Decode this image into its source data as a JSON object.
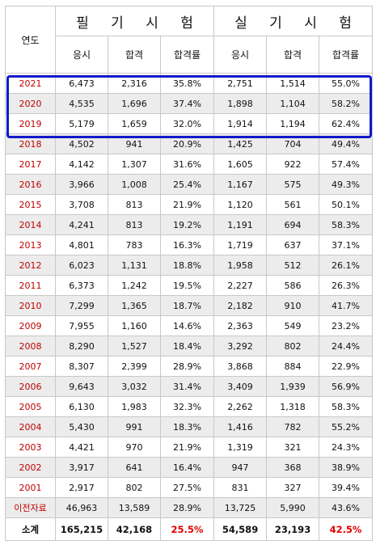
{
  "header": {
    "year_label": "연도",
    "written_label": "필 기 시 험",
    "practical_label": "실 기 시 험",
    "columns": [
      "응시",
      "합격",
      "합격률",
      "응시",
      "합격",
      "합격률"
    ]
  },
  "rows": [
    {
      "year": "2021",
      "w_apply": "6,473",
      "w_pass": "2,316",
      "w_rate": "35.8%",
      "p_apply": "2,751",
      "p_pass": "1,514",
      "p_rate": "55.0%"
    },
    {
      "year": "2020",
      "w_apply": "4,535",
      "w_pass": "1,696",
      "w_rate": "37.4%",
      "p_apply": "1,898",
      "p_pass": "1,104",
      "p_rate": "58.2%"
    },
    {
      "year": "2019",
      "w_apply": "5,179",
      "w_pass": "1,659",
      "w_rate": "32.0%",
      "p_apply": "1,914",
      "p_pass": "1,194",
      "p_rate": "62.4%"
    },
    {
      "year": "2018",
      "w_apply": "4,502",
      "w_pass": "941",
      "w_rate": "20.9%",
      "p_apply": "1,425",
      "p_pass": "704",
      "p_rate": "49.4%"
    },
    {
      "year": "2017",
      "w_apply": "4,142",
      "w_pass": "1,307",
      "w_rate": "31.6%",
      "p_apply": "1,605",
      "p_pass": "922",
      "p_rate": "57.4%"
    },
    {
      "year": "2016",
      "w_apply": "3,966",
      "w_pass": "1,008",
      "w_rate": "25.4%",
      "p_apply": "1,167",
      "p_pass": "575",
      "p_rate": "49.3%"
    },
    {
      "year": "2015",
      "w_apply": "3,708",
      "w_pass": "813",
      "w_rate": "21.9%",
      "p_apply": "1,120",
      "p_pass": "561",
      "p_rate": "50.1%"
    },
    {
      "year": "2014",
      "w_apply": "4,241",
      "w_pass": "813",
      "w_rate": "19.2%",
      "p_apply": "1,191",
      "p_pass": "694",
      "p_rate": "58.3%"
    },
    {
      "year": "2013",
      "w_apply": "4,801",
      "w_pass": "783",
      "w_rate": "16.3%",
      "p_apply": "1,719",
      "p_pass": "637",
      "p_rate": "37.1%"
    },
    {
      "year": "2012",
      "w_apply": "6,023",
      "w_pass": "1,131",
      "w_rate": "18.8%",
      "p_apply": "1,958",
      "p_pass": "512",
      "p_rate": "26.1%"
    },
    {
      "year": "2011",
      "w_apply": "6,373",
      "w_pass": "1,242",
      "w_rate": "19.5%",
      "p_apply": "2,227",
      "p_pass": "586",
      "p_rate": "26.3%"
    },
    {
      "year": "2010",
      "w_apply": "7,299",
      "w_pass": "1,365",
      "w_rate": "18.7%",
      "p_apply": "2,182",
      "p_pass": "910",
      "p_rate": "41.7%"
    },
    {
      "year": "2009",
      "w_apply": "7,955",
      "w_pass": "1,160",
      "w_rate": "14.6%",
      "p_apply": "2,363",
      "p_pass": "549",
      "p_rate": "23.2%"
    },
    {
      "year": "2008",
      "w_apply": "8,290",
      "w_pass": "1,527",
      "w_rate": "18.4%",
      "p_apply": "3,292",
      "p_pass": "802",
      "p_rate": "24.4%"
    },
    {
      "year": "2007",
      "w_apply": "8,307",
      "w_pass": "2,399",
      "w_rate": "28.9%",
      "p_apply": "3,868",
      "p_pass": "884",
      "p_rate": "22.9%"
    },
    {
      "year": "2006",
      "w_apply": "9,643",
      "w_pass": "3,032",
      "w_rate": "31.4%",
      "p_apply": "3,409",
      "p_pass": "1,939",
      "p_rate": "56.9%"
    },
    {
      "year": "2005",
      "w_apply": "6,130",
      "w_pass": "1,983",
      "w_rate": "32.3%",
      "p_apply": "2,262",
      "p_pass": "1,318",
      "p_rate": "58.3%"
    },
    {
      "year": "2004",
      "w_apply": "5,430",
      "w_pass": "991",
      "w_rate": "18.3%",
      "p_apply": "1,416",
      "p_pass": "782",
      "p_rate": "55.2%"
    },
    {
      "year": "2003",
      "w_apply": "4,421",
      "w_pass": "970",
      "w_rate": "21.9%",
      "p_apply": "1,319",
      "p_pass": "321",
      "p_rate": "24.3%"
    },
    {
      "year": "2002",
      "w_apply": "3,917",
      "w_pass": "641",
      "w_rate": "16.4%",
      "p_apply": "947",
      "p_pass": "368",
      "p_rate": "38.9%"
    },
    {
      "year": "2001",
      "w_apply": "2,917",
      "w_pass": "802",
      "w_rate": "27.5%",
      "p_apply": "831",
      "p_pass": "327",
      "p_rate": "39.4%"
    },
    {
      "year": "이전자료",
      "w_apply": "46,963",
      "w_pass": "13,589",
      "w_rate": "28.9%",
      "p_apply": "13,725",
      "p_pass": "5,990",
      "p_rate": "43.6%"
    }
  ],
  "total": {
    "year": "소계",
    "w_apply": "165,215",
    "w_pass": "42,168",
    "w_rate": "25.5%",
    "p_apply": "54,589",
    "p_pass": "23,193",
    "p_rate": "42.5%"
  },
  "colors": {
    "year_text": "#c00000",
    "highlight_border": "#1219c8",
    "total_rate": "#e00000",
    "alt_row": "#ececec"
  }
}
